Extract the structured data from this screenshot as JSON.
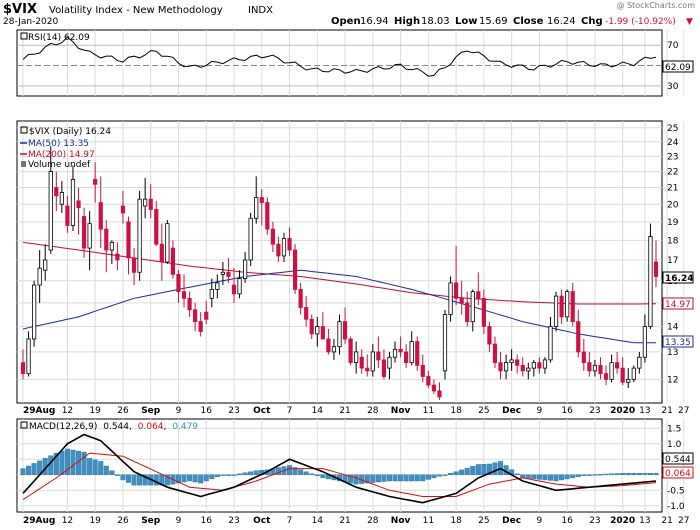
{
  "header": {
    "symbol": "$VIX",
    "name": "Volatility Index - New Methodology",
    "exchange": "INDX",
    "date": "28-Jan-2020",
    "watermark": "@ StockCharts.com",
    "open_label": "Open",
    "open": "16.94",
    "high_label": "High",
    "high": "18.03",
    "low_label": "Low",
    "low": "15.69",
    "close_label": "Close",
    "close": "16.24",
    "chg_label": "Chg",
    "chg": "-1.99 (-10.92%)"
  },
  "colors": {
    "up": "#000000",
    "down": "#cc1144",
    "ma50": "#1a2a9a",
    "ma200": "#c0102a",
    "macd": "#000000",
    "signal": "#d01010",
    "hist": "#3f8fc0",
    "grid": "#dcdcdc",
    "rsi": "#000000"
  },
  "rsi_panel": {
    "legend": "RSI(14) 62.09",
    "ticks": [
      "70",
      "50",
      "30"
    ],
    "last_label": "62.09"
  },
  "price_panel": {
    "legend_main": "$VIX (Daily) 16.24",
    "legend_ma50": "MA(50) 13.35",
    "legend_ma200": "MA(200) 14.97",
    "legend_volume": "Volume undef",
    "ticks": [
      "25",
      "24",
      "23",
      "22",
      "21",
      "20",
      "19",
      "18",
      "17",
      "16",
      "15",
      "14",
      "13",
      "12"
    ],
    "badge_close": "16.24",
    "badge_ma200": "14.97",
    "badge_ma50": "13.35"
  },
  "macd_panel": {
    "legend_prefix": "MACD(12,26,9)",
    "macd_value": "0.544",
    "signal_value": "0.064",
    "hist_value": "0.479",
    "ticks": [
      "1.5",
      "1.0",
      "0.5",
      "0.0",
      "-0.5",
      "-1.0"
    ],
    "badge_macd": "0.544",
    "badge_signal": "0.064"
  },
  "x_axis": {
    "labels": [
      "29Aug",
      "12",
      "19",
      "26",
      "Sep",
      "9",
      "16",
      "23",
      "Oct",
      "7",
      "14",
      "21",
      "28",
      "Nov",
      "11",
      "18",
      "25",
      "Dec",
      "9",
      "16",
      "23",
      "2020",
      "13",
      "21",
      "27"
    ]
  },
  "chart_data": {
    "type": "candlestick",
    "title": "$VIX Volatility Index - New Methodology INDX",
    "x_range": [
      "2019-07-29",
      "2020-01-28"
    ],
    "price_axis": {
      "ylim": [
        11.2,
        25.5
      ],
      "log_scale": true
    },
    "ohlc": [
      [
        12.6,
        13.1,
        12.0,
        12.2
      ],
      [
        12.2,
        13.8,
        12.1,
        13.5
      ],
      [
        13.5,
        16.0,
        13.2,
        15.8
      ],
      [
        15.8,
        17.5,
        15.0,
        16.6
      ],
      [
        16.5,
        17.8,
        16.0,
        17.0
      ],
      [
        17.5,
        23.7,
        17.3,
        22.0
      ],
      [
        21.0,
        22.0,
        19.6,
        20.5
      ],
      [
        20.0,
        21.4,
        19.5,
        20.7
      ],
      [
        19.9,
        20.5,
        18.4,
        18.8
      ],
      [
        18.8,
        22.4,
        18.5,
        21.5
      ],
      [
        20.2,
        21.0,
        18.3,
        19.8
      ],
      [
        19.3,
        19.8,
        17.1,
        17.6
      ],
      [
        17.6,
        19.6,
        16.5,
        18.9
      ],
      [
        21.5,
        22.6,
        20.1,
        21.2
      ],
      [
        20.1,
        21.7,
        17.6,
        18.6
      ],
      [
        18.6,
        19.1,
        16.4,
        17.5
      ],
      [
        17.5,
        18.0,
        16.8,
        17.9
      ],
      [
        17.3,
        17.9,
        16.5,
        17.0
      ],
      [
        19.9,
        20.8,
        18.9,
        19.5
      ],
      [
        19.0,
        19.3,
        16.3,
        17.1
      ],
      [
        17.1,
        17.6,
        15.8,
        16.4
      ],
      [
        16.4,
        20.8,
        16.0,
        20.3
      ],
      [
        19.9,
        21.6,
        19.2,
        20.3
      ],
      [
        20.3,
        21.2,
        19.2,
        19.7
      ],
      [
        19.7,
        20.2,
        17.7,
        17.8
      ],
      [
        17.8,
        18.9,
        16.0,
        16.9
      ],
      [
        16.9,
        19.1,
        16.8,
        18.9
      ],
      [
        17.6,
        18.0,
        16.1,
        16.3
      ],
      [
        16.3,
        16.5,
        15.0,
        15.5
      ],
      [
        15.5,
        16.3,
        14.8,
        15.2
      ],
      [
        15.2,
        15.5,
        14.4,
        14.7
      ],
      [
        14.7,
        15.0,
        13.8,
        14.2
      ],
      [
        14.2,
        14.6,
        13.6,
        13.8
      ],
      [
        14.6,
        15.1,
        14.1,
        14.3
      ],
      [
        15.2,
        16.1,
        14.8,
        15.6
      ],
      [
        15.6,
        16.3,
        15.2,
        15.9
      ],
      [
        16.3,
        16.9,
        15.8,
        16.4
      ],
      [
        16.4,
        17.1,
        15.9,
        16.2
      ],
      [
        15.8,
        16.6,
        15.0,
        15.4
      ],
      [
        15.4,
        16.5,
        15.2,
        16.1
      ],
      [
        16.1,
        17.4,
        15.9,
        17.0
      ],
      [
        17.0,
        19.5,
        16.7,
        19.2
      ],
      [
        19.2,
        21.7,
        18.9,
        20.4
      ],
      [
        20.4,
        20.9,
        18.8,
        20.1
      ],
      [
        20.1,
        20.4,
        18.3,
        18.6
      ],
      [
        18.6,
        19.0,
        17.4,
        17.8
      ],
      [
        17.8,
        18.2,
        16.9,
        17.2
      ],
      [
        17.2,
        18.4,
        16.9,
        18.1
      ],
      [
        18.1,
        18.7,
        17.2,
        17.5
      ],
      [
        17.5,
        17.8,
        15.4,
        15.6
      ],
      [
        15.6,
        15.9,
        14.5,
        14.8
      ],
      [
        14.8,
        15.3,
        14.0,
        14.3
      ],
      [
        14.3,
        14.5,
        13.5,
        13.7
      ],
      [
        13.7,
        14.4,
        13.2,
        14.0
      ],
      [
        14.0,
        14.6,
        13.6,
        13.5
      ],
      [
        13.5,
        13.9,
        12.9,
        13.0
      ],
      [
        13.0,
        13.5,
        12.7,
        13.2
      ],
      [
        13.2,
        14.5,
        12.9,
        14.2
      ],
      [
        14.2,
        14.8,
        13.3,
        13.5
      ],
      [
        13.5,
        13.6,
        12.5,
        12.6
      ],
      [
        12.6,
        13.4,
        12.2,
        13.0
      ],
      [
        12.8,
        13.1,
        12.2,
        12.4
      ],
      [
        12.4,
        12.9,
        12.1,
        12.3
      ],
      [
        12.3,
        13.3,
        12.1,
        13.0
      ],
      [
        13.0,
        13.6,
        12.4,
        12.7
      ],
      [
        12.7,
        13.1,
        12.0,
        12.1
      ],
      [
        12.4,
        13.0,
        12.0,
        12.8
      ],
      [
        12.8,
        13.4,
        12.6,
        13.1
      ],
      [
        13.1,
        13.6,
        12.8,
        13.0
      ],
      [
        13.0,
        13.3,
        12.4,
        12.6
      ],
      [
        12.6,
        13.8,
        12.5,
        13.4
      ],
      [
        13.4,
        13.6,
        12.3,
        12.5
      ],
      [
        12.5,
        12.9,
        11.9,
        12.1
      ],
      [
        12.1,
        12.3,
        11.7,
        11.8
      ],
      [
        11.8,
        12.0,
        11.5,
        11.6
      ],
      [
        11.6,
        11.9,
        11.3,
        11.4
      ],
      [
        12.3,
        14.7,
        12.0,
        14.5
      ],
      [
        14.5,
        16.2,
        14.2,
        15.9
      ],
      [
        15.9,
        17.7,
        14.9,
        15.2
      ],
      [
        15.2,
        16.0,
        14.5,
        15.0
      ],
      [
        15.0,
        15.5,
        14.0,
        14.2
      ],
      [
        14.2,
        15.6,
        13.8,
        15.5
      ],
      [
        15.5,
        16.4,
        14.9,
        15.2
      ],
      [
        15.2,
        15.6,
        13.7,
        14.0
      ],
      [
        14.0,
        14.2,
        13.0,
        13.3
      ],
      [
        13.3,
        13.6,
        12.4,
        12.6
      ],
      [
        12.6,
        13.0,
        12.0,
        12.3
      ],
      [
        12.3,
        12.9,
        12.0,
        12.6
      ],
      [
        12.6,
        13.1,
        12.3,
        12.7
      ],
      [
        12.7,
        12.9,
        12.2,
        12.5
      ],
      [
        12.5,
        12.8,
        12.1,
        12.3
      ],
      [
        12.3,
        12.6,
        12.0,
        12.4
      ],
      [
        12.4,
        12.7,
        12.1,
        12.6
      ],
      [
        12.6,
        12.8,
        12.2,
        12.4
      ],
      [
        12.4,
        12.8,
        12.2,
        12.7
      ],
      [
        12.7,
        14.4,
        12.6,
        14.0
      ],
      [
        14.0,
        15.5,
        13.8,
        15.3
      ],
      [
        15.3,
        15.6,
        14.1,
        14.4
      ],
      [
        14.4,
        15.6,
        14.2,
        15.5
      ],
      [
        15.5,
        15.9,
        14.0,
        14.2
      ],
      [
        14.2,
        14.7,
        12.8,
        13.0
      ],
      [
        13.0,
        13.5,
        12.3,
        12.6
      ],
      [
        12.6,
        13.0,
        12.1,
        12.3
      ],
      [
        12.3,
        12.7,
        12.1,
        12.5
      ],
      [
        12.5,
        12.8,
        12.0,
        12.2
      ],
      [
        12.2,
        12.5,
        11.8,
        12.0
      ],
      [
        12.0,
        12.9,
        11.9,
        12.6
      ],
      [
        12.6,
        13.0,
        12.2,
        12.4
      ],
      [
        12.4,
        12.8,
        11.8,
        11.9
      ],
      [
        11.9,
        12.4,
        11.7,
        12.0
      ],
      [
        12.0,
        12.5,
        11.9,
        12.4
      ],
      [
        12.4,
        13.0,
        12.2,
        12.8
      ],
      [
        12.8,
        14.5,
        12.6,
        14.0
      ],
      [
        14.0,
        18.9,
        13.9,
        18.2
      ],
      [
        16.9,
        18.0,
        15.7,
        16.2
      ]
    ],
    "ma50": [
      [
        0,
        13.9
      ],
      [
        10,
        14.4
      ],
      [
        20,
        15.2
      ],
      [
        30,
        15.7
      ],
      [
        40,
        16.2
      ],
      [
        50,
        16.5
      ],
      [
        60,
        16.2
      ],
      [
        70,
        15.6
      ],
      [
        80,
        14.9
      ],
      [
        90,
        14.2
      ],
      [
        100,
        13.7
      ],
      [
        110,
        13.35
      ],
      [
        119,
        13.35
      ]
    ],
    "ma200": [
      [
        0,
        17.9
      ],
      [
        10,
        17.5
      ],
      [
        20,
        17.1
      ],
      [
        30,
        16.7
      ],
      [
        40,
        16.4
      ],
      [
        50,
        16.2
      ],
      [
        60,
        15.85
      ],
      [
        70,
        15.45
      ],
      [
        80,
        15.2
      ],
      [
        90,
        15.05
      ],
      [
        100,
        14.95
      ],
      [
        110,
        14.95
      ],
      [
        119,
        14.97
      ]
    ],
    "rsi": [
      [
        0,
        56
      ],
      [
        5,
        70
      ],
      [
        8,
        76
      ],
      [
        12,
        62
      ],
      [
        18,
        55
      ],
      [
        24,
        64
      ],
      [
        30,
        48
      ],
      [
        36,
        54
      ],
      [
        44,
        60
      ],
      [
        52,
        46
      ],
      [
        60,
        44
      ],
      [
        68,
        50
      ],
      [
        74,
        40
      ],
      [
        80,
        66
      ],
      [
        86,
        52
      ],
      [
        92,
        47
      ],
      [
        98,
        54
      ],
      [
        104,
        50
      ],
      [
        110,
        52
      ],
      [
        114,
        60
      ],
      [
        117,
        76
      ],
      [
        119,
        62.09
      ]
    ],
    "rsi_ylim": [
      20,
      85
    ],
    "macd": [
      [
        0,
        -0.6
      ],
      [
        4,
        0.2
      ],
      [
        8,
        1.0
      ],
      [
        11,
        1.3
      ],
      [
        14,
        1.1
      ],
      [
        20,
        0.1
      ],
      [
        26,
        -0.4
      ],
      [
        32,
        -0.7
      ],
      [
        38,
        -0.4
      ],
      [
        44,
        0.1
      ],
      [
        48,
        0.5
      ],
      [
        54,
        0.1
      ],
      [
        60,
        -0.4
      ],
      [
        66,
        -0.7
      ],
      [
        72,
        -0.9
      ],
      [
        78,
        -0.6
      ],
      [
        82,
        -0.1
      ],
      [
        86,
        0.2
      ],
      [
        90,
        -0.2
      ],
      [
        96,
        -0.5
      ],
      [
        102,
        -0.4
      ],
      [
        108,
        -0.3
      ],
      [
        114,
        -0.2
      ],
      [
        117,
        0.3
      ],
      [
        119,
        0.544
      ]
    ],
    "signal": [
      [
        0,
        -0.8
      ],
      [
        6,
        -0.1
      ],
      [
        12,
        0.7
      ],
      [
        18,
        0.6
      ],
      [
        24,
        0.1
      ],
      [
        30,
        -0.4
      ],
      [
        36,
        -0.5
      ],
      [
        42,
        -0.2
      ],
      [
        48,
        0.2
      ],
      [
        54,
        0.2
      ],
      [
        60,
        -0.1
      ],
      [
        66,
        -0.5
      ],
      [
        72,
        -0.7
      ],
      [
        78,
        -0.7
      ],
      [
        84,
        -0.3
      ],
      [
        90,
        -0.1
      ],
      [
        96,
        -0.3
      ],
      [
        102,
        -0.4
      ],
      [
        108,
        -0.35
      ],
      [
        114,
        -0.25
      ],
      [
        117,
        -0.1
      ],
      [
        119,
        0.064
      ]
    ],
    "macd_ylim": [
      -1.2,
      1.8
    ],
    "x_ticks": [
      [
        "29Aug",
        0
      ],
      [
        "12",
        8
      ],
      [
        "19",
        13
      ],
      [
        "26",
        18
      ],
      [
        "Sep",
        23
      ],
      [
        "9",
        28
      ],
      [
        "16",
        33
      ],
      [
        "23",
        38
      ],
      [
        "Oct",
        43
      ],
      [
        "7",
        48
      ],
      [
        "14",
        53
      ],
      [
        "21",
        58
      ],
      [
        "28",
        63
      ],
      [
        "Nov",
        68
      ],
      [
        "11",
        73
      ],
      [
        "18",
        78
      ],
      [
        "25",
        83
      ],
      [
        "Dec",
        88
      ],
      [
        "9",
        93
      ],
      [
        "16",
        98
      ],
      [
        "23",
        103
      ],
      [
        "2020",
        108
      ],
      [
        "13",
        112
      ],
      [
        "21",
        116
      ],
      [
        "27",
        119
      ]
    ],
    "grid": true,
    "legend_position": "top-left"
  }
}
